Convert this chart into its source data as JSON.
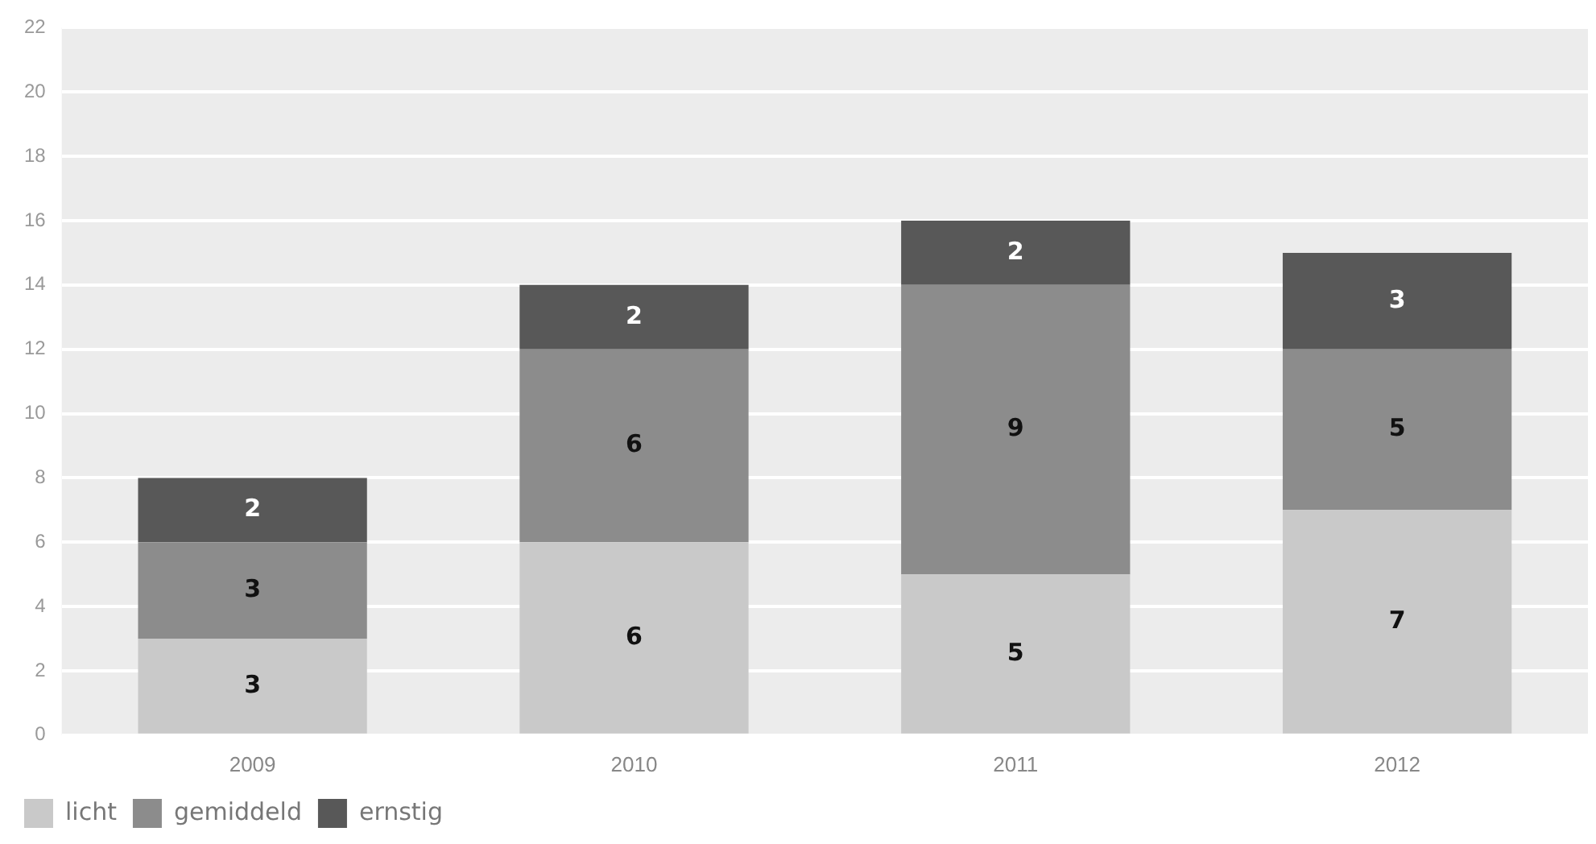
{
  "chart_data": {
    "type": "bar",
    "stacked": true,
    "categories": [
      "2009",
      "2010",
      "2011",
      "2012"
    ],
    "series": [
      {
        "name": "licht",
        "color": "#c9c9c9",
        "values": [
          3,
          6,
          5,
          7
        ]
      },
      {
        "name": "gemiddeld",
        "color": "#8c8c8c",
        "values": [
          3,
          6,
          9,
          5
        ]
      },
      {
        "name": "ernstig",
        "color": "#585858",
        "values": [
          2,
          2,
          2,
          3
        ]
      }
    ],
    "ylim": [
      0,
      22
    ],
    "yticks": [
      0,
      2,
      4,
      6,
      8,
      10,
      12,
      14,
      16,
      18,
      20,
      22
    ],
    "grid": "y",
    "legend": "bottom left",
    "data_labels": true
  }
}
